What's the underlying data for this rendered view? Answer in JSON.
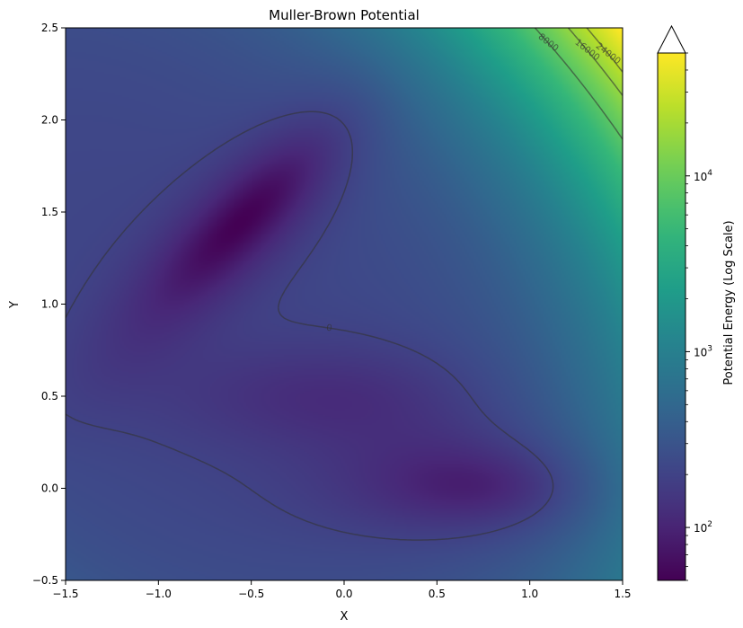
{
  "chart_data": {
    "type": "heatmap",
    "title": "Muller-Brown Potential",
    "xlabel": "X",
    "ylabel": "Y",
    "xlim": [
      -1.5,
      1.5
    ],
    "ylim": [
      -0.5,
      2.5
    ],
    "x_ticks": [
      {
        "value": -1.5,
        "label": "−1.5"
      },
      {
        "value": -1.0,
        "label": "−1.0"
      },
      {
        "value": -0.5,
        "label": "−0.5"
      },
      {
        "value": 0.0,
        "label": "0.0"
      },
      {
        "value": 0.5,
        "label": "0.5"
      },
      {
        "value": 1.0,
        "label": "1.0"
      },
      {
        "value": 1.5,
        "label": "1.5"
      }
    ],
    "y_ticks": [
      {
        "value": -0.5,
        "label": "−0.5"
      },
      {
        "value": 0.0,
        "label": "0.0"
      },
      {
        "value": 0.5,
        "label": "0.5"
      },
      {
        "value": 1.0,
        "label": "1.0"
      },
      {
        "value": 1.5,
        "label": "1.5"
      },
      {
        "value": 2.0,
        "label": "2.0"
      },
      {
        "value": 2.5,
        "label": "2.5"
      }
    ],
    "colorbar": {
      "label": "Potential Energy (Log Scale)",
      "scale": "log",
      "colormap": "viridis",
      "extend": "max",
      "range": [
        50,
        50000
      ],
      "major_ticks": [
        {
          "value": 100,
          "label": "10",
          "exp": "2"
        },
        {
          "value": 1000,
          "label": "10",
          "exp": "3"
        },
        {
          "value": 10000,
          "label": "10",
          "exp": "4"
        }
      ],
      "minor_ticks": [
        50,
        60,
        70,
        80,
        90,
        200,
        300,
        400,
        500,
        600,
        700,
        800,
        900,
        2000,
        3000,
        4000,
        5000,
        6000,
        7000,
        8000,
        9000,
        20000,
        30000,
        40000,
        50000
      ]
    },
    "contour_levels": [
      {
        "value": 0,
        "label": "0"
      },
      {
        "value": 8000,
        "label": "8000"
      },
      {
        "value": 16000,
        "label": "16000"
      },
      {
        "value": 24000,
        "label": "24000"
      }
    ],
    "grid": false
  },
  "colors": {
    "viridis": [
      "#440154",
      "#482878",
      "#3e4989",
      "#31688e",
      "#26828e",
      "#1f9e89",
      "#35b779",
      "#6ece58",
      "#b5de2b",
      "#fde725"
    ],
    "contour": "#333333",
    "background": "#ffffff"
  }
}
